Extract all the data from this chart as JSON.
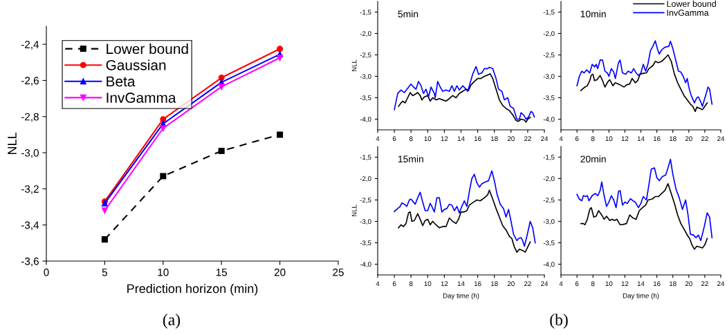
{
  "chart_data": [
    {
      "type": "line",
      "xlabel": "Prediction horizon (min)",
      "ylabel": "NLL",
      "annotations": [
        "(a)"
      ],
      "x": [
        5,
        10,
        15,
        20
      ],
      "xlim": [
        0,
        25
      ],
      "xticks": [
        0,
        5,
        10,
        15,
        20,
        25
      ],
      "ylim": [
        -3.6,
        -2.3
      ],
      "yticks": [
        {
          "value": -3.6,
          "label": "-3,6"
        },
        {
          "value": -3.4,
          "label": "-3,4"
        },
        {
          "value": -3.2,
          "label": "-3,2"
        },
        {
          "value": -3.0,
          "label": "-3,0"
        },
        {
          "value": -2.8,
          "label": "-2,8"
        },
        {
          "value": -2.6,
          "label": "-2,6"
        },
        {
          "value": -2.4,
          "label": "-2,4"
        }
      ],
      "legend": "top left",
      "series": [
        {
          "name": "Lower bound",
          "color": "#000000",
          "marker": "square",
          "line_style": "dashed",
          "values": [
            -3.48,
            -3.13,
            -2.99,
            -2.9
          ]
        },
        {
          "name": "Gaussian",
          "color": "#ff0000",
          "marker": "circle",
          "line_style": "solid",
          "values": [
            -3.27,
            -2.815,
            -2.585,
            -2.425
          ]
        },
        {
          "name": "Beta",
          "color": "#0000ff",
          "marker": "triangle",
          "line_style": "solid",
          "values": [
            -3.28,
            -2.84,
            -2.61,
            -2.455
          ]
        },
        {
          "name": "InvGamma",
          "color": "#ff00ff",
          "marker": "triangle_down",
          "line_style": "solid",
          "values": [
            -3.32,
            -2.865,
            -2.635,
            -2.475
          ]
        }
      ]
    },
    {
      "type": "line",
      "title": "5min",
      "ylabel": "NLL",
      "xlim": [
        4,
        24
      ],
      "xticks": [
        4,
        6,
        8,
        10,
        12,
        14,
        16,
        18,
        20,
        22,
        24
      ],
      "ylim": [
        -4.25,
        -1.25
      ],
      "yticks": [
        {
          "value": -4.0,
          "label": "-4,0"
        },
        {
          "value": -3.5,
          "label": "-3,5"
        },
        {
          "value": -3.0,
          "label": "-3,0"
        },
        {
          "value": -2.5,
          "label": "-2,5"
        },
        {
          "value": -2.0,
          "label": "-2,0"
        },
        {
          "value": -1.5,
          "label": "-1,5"
        }
      ],
      "series": [
        {
          "color": "#000000",
          "x": [
            6.5,
            6.8,
            7.0,
            7.3,
            7.6,
            7.9,
            8.2,
            8.5,
            8.8,
            9.1,
            9.3,
            9.6,
            10.0,
            10.3,
            10.6,
            11.0,
            11.4,
            11.8,
            12.2,
            12.6,
            13.0,
            13.4,
            13.8,
            14.2,
            14.6,
            14.9,
            15.2,
            15.6,
            16.0,
            16.4,
            16.8,
            17.2,
            17.5,
            17.8,
            18.2,
            18.6,
            19.0,
            19.4,
            19.8,
            20.2,
            20.6,
            20.9,
            21.2,
            21.6,
            21.8,
            22.0,
            22.3
          ],
          "values": [
            -3.7,
            -3.62,
            -3.58,
            -3.62,
            -3.5,
            -3.38,
            -3.45,
            -3.42,
            -3.38,
            -3.45,
            -3.55,
            -3.48,
            -3.45,
            -3.58,
            -3.5,
            -3.55,
            -3.52,
            -3.55,
            -3.58,
            -3.52,
            -3.45,
            -3.5,
            -3.4,
            -3.35,
            -3.3,
            -3.33,
            -3.2,
            -3.12,
            -3.05,
            -3.05,
            -3.0,
            -2.97,
            -2.94,
            -3.05,
            -3.3,
            -3.55,
            -3.68,
            -3.75,
            -3.8,
            -3.9,
            -4.03,
            -4.05,
            -4.0,
            -4.02,
            -4.07,
            -4.0,
            -3.96
          ]
        },
        {
          "color": "#0000ff",
          "x": [
            6.0,
            6.4,
            6.8,
            7.2,
            7.6,
            8.0,
            8.3,
            8.6,
            8.9,
            9.2,
            9.5,
            9.8,
            10.1,
            10.4,
            10.8,
            10.9,
            11.2,
            11.5,
            11.8,
            12.2,
            12.6,
            12.9,
            13.2,
            13.5,
            13.8,
            14.2,
            14.5,
            14.8,
            15.1,
            15.4,
            15.8,
            16.1,
            16.5,
            16.8,
            17.2,
            17.4,
            17.8,
            18.2,
            18.5,
            18.9,
            19.2,
            19.6,
            19.9,
            20.3,
            20.7,
            21.0,
            21.2,
            21.5,
            21.8,
            22.1,
            22.4,
            22.6,
            22.8
          ],
          "values": [
            -3.78,
            -3.4,
            -3.32,
            -3.38,
            -3.28,
            -3.18,
            -3.25,
            -3.3,
            -3.12,
            -3.22,
            -3.4,
            -3.3,
            -3.48,
            -3.25,
            -3.4,
            -3.5,
            -3.12,
            -3.25,
            -3.35,
            -3.32,
            -3.35,
            -3.22,
            -3.35,
            -3.22,
            -3.32,
            -3.22,
            -3.28,
            -3.35,
            -3.15,
            -2.95,
            -2.77,
            -2.95,
            -2.92,
            -2.82,
            -2.82,
            -2.79,
            -2.82,
            -3.05,
            -3.3,
            -3.35,
            -3.55,
            -3.5,
            -3.7,
            -3.75,
            -4.0,
            -4.0,
            -3.85,
            -3.9,
            -4.0,
            -3.95,
            -3.82,
            -3.85,
            -3.95
          ]
        }
      ]
    },
    {
      "type": "line",
      "title": "10min",
      "xlim": [
        4,
        24
      ],
      "xticks": [
        4,
        6,
        8,
        10,
        12,
        14,
        16,
        18,
        20,
        22,
        24
      ],
      "ylim": [
        -4.25,
        -1.25
      ],
      "yticks": [
        {
          "value": -4.0,
          "label": "-4,0"
        },
        {
          "value": -3.5,
          "label": "-3,5"
        },
        {
          "value": -3.0,
          "label": "-3,0"
        },
        {
          "value": -2.5,
          "label": "-2,5"
        },
        {
          "value": -2.0,
          "label": "-2,0"
        },
        {
          "value": -1.5,
          "label": "-1,5"
        }
      ],
      "legend": "top right",
      "series": [
        {
          "name": "Lower bound",
          "color": "#000000",
          "x": [
            6.5,
            6.8,
            7.0,
            7.3,
            7.6,
            7.8,
            8.0,
            8.2,
            8.5,
            8.9,
            9.2,
            9.5,
            9.9,
            10.1,
            10.5,
            10.8,
            11.2,
            11.6,
            11.9,
            12.2,
            12.6,
            12.9,
            13.3,
            13.6,
            13.9,
            14.3,
            14.7,
            15.0,
            15.5,
            15.8,
            16.2,
            16.6,
            17.0,
            17.4,
            17.8,
            18.2,
            18.6,
            19.0,
            19.4,
            19.8,
            20.2,
            20.5,
            20.8,
            21.0,
            21.4,
            21.7,
            22.0,
            22.3
          ],
          "values": [
            -3.33,
            -3.28,
            -3.25,
            -3.22,
            -3.1,
            -2.97,
            -2.95,
            -3.1,
            -3.08,
            -2.98,
            -3.1,
            -3.25,
            -3.12,
            -3.08,
            -3.22,
            -3.15,
            -3.18,
            -3.22,
            -3.25,
            -3.2,
            -3.18,
            -3.05,
            -3.15,
            -3.1,
            -2.95,
            -2.93,
            -2.92,
            -2.82,
            -2.75,
            -2.65,
            -2.68,
            -2.65,
            -2.58,
            -2.5,
            -2.65,
            -2.95,
            -3.15,
            -3.3,
            -3.45,
            -3.55,
            -3.65,
            -3.7,
            -3.82,
            -3.72,
            -3.75,
            -3.78,
            -3.7,
            -3.62
          ]
        },
        {
          "name": "InvGamma",
          "color": "#0000ff",
          "x": [
            6.0,
            6.3,
            6.6,
            6.9,
            7.2,
            7.6,
            7.9,
            8.2,
            8.4,
            8.6,
            8.9,
            9.2,
            9.5,
            9.8,
            10.0,
            10.3,
            10.6,
            10.8,
            11.2,
            11.4,
            11.7,
            12.1,
            12.4,
            12.8,
            13.1,
            13.4,
            13.7,
            14.0,
            14.3,
            14.6,
            14.9,
            15.2,
            15.5,
            15.8,
            16.1,
            16.3,
            16.6,
            17.0,
            17.5,
            17.7,
            18.0,
            18.4,
            18.7,
            19.0,
            19.3,
            19.6,
            19.8,
            20.0,
            20.3,
            20.7,
            21.0,
            21.2,
            21.5,
            21.7,
            22.1,
            22.4,
            22.6,
            22.9
          ],
          "values": [
            -3.22,
            -3.0,
            -2.88,
            -2.92,
            -2.85,
            -2.92,
            -2.72,
            -2.78,
            -2.72,
            -2.82,
            -2.62,
            -2.62,
            -2.88,
            -2.92,
            -3.0,
            -2.82,
            -2.9,
            -3.05,
            -2.68,
            -2.62,
            -2.92,
            -2.95,
            -2.88,
            -2.92,
            -2.82,
            -2.92,
            -2.98,
            -2.92,
            -2.72,
            -2.88,
            -2.7,
            -2.4,
            -2.3,
            -2.17,
            -2.38,
            -2.48,
            -2.38,
            -2.32,
            -2.3,
            -2.18,
            -2.35,
            -2.65,
            -2.88,
            -2.9,
            -3.0,
            -3.15,
            -3.05,
            -3.25,
            -3.45,
            -3.62,
            -3.5,
            -3.48,
            -3.6,
            -3.7,
            -3.45,
            -3.25,
            -3.3,
            -3.65
          ]
        }
      ]
    },
    {
      "type": "line",
      "title": "15min",
      "xlabel": "Day time (h)",
      "ylabel": "NLL",
      "annotations": [
        "(b)"
      ],
      "xlim": [
        4,
        24
      ],
      "xticks": [
        4,
        6,
        8,
        10,
        12,
        14,
        16,
        18,
        20,
        22,
        24
      ],
      "ylim": [
        -4.25,
        -1.25
      ],
      "yticks": [
        {
          "value": -4.0,
          "label": "-4,0"
        },
        {
          "value": -3.5,
          "label": "-3,5"
        },
        {
          "value": -3.0,
          "label": "-3,0"
        },
        {
          "value": -2.5,
          "label": "-2,5"
        },
        {
          "value": -2.0,
          "label": "-2,0"
        },
        {
          "value": -1.5,
          "label": "-1,5"
        }
      ],
      "series": [
        {
          "color": "#000000",
          "x": [
            6.5,
            6.8,
            7.1,
            7.4,
            7.7,
            7.9,
            8.1,
            8.4,
            8.8,
            9.1,
            9.4,
            9.7,
            10.0,
            10.3,
            10.6,
            11.0,
            11.4,
            11.8,
            12.2,
            12.6,
            13.0,
            13.4,
            13.7,
            14.0,
            14.4,
            14.7,
            15.0,
            15.5,
            15.9,
            16.3,
            16.8,
            17.2,
            17.4,
            17.8,
            18.2,
            18.6,
            19.0,
            19.4,
            19.8,
            20.1,
            20.4,
            20.7,
            21.0,
            21.4,
            21.7,
            22.0,
            22.3
          ],
          "values": [
            -3.15,
            -3.08,
            -3.12,
            -3.05,
            -2.8,
            -2.78,
            -3.0,
            -2.98,
            -2.82,
            -2.95,
            -3.1,
            -2.98,
            -2.95,
            -3.08,
            -3.0,
            -3.08,
            -3.15,
            -3.12,
            -3.12,
            -2.92,
            -3.0,
            -3.05,
            -2.95,
            -2.78,
            -2.78,
            -2.75,
            -2.62,
            -2.55,
            -2.5,
            -2.52,
            -2.45,
            -2.38,
            -2.27,
            -2.48,
            -2.7,
            -2.9,
            -3.1,
            -3.2,
            -3.35,
            -3.4,
            -3.6,
            -3.72,
            -3.65,
            -3.68,
            -3.72,
            -3.6,
            -3.48
          ]
        },
        {
          "color": "#0000ff",
          "x": [
            6.0,
            6.4,
            6.7,
            6.9,
            7.2,
            7.5,
            7.8,
            8.0,
            8.3,
            8.5,
            8.8,
            9.1,
            9.4,
            9.7,
            10.0,
            10.3,
            10.5,
            10.8,
            11.1,
            11.4,
            11.7,
            12.0,
            12.3,
            12.6,
            12.9,
            13.2,
            13.5,
            13.8,
            14.1,
            14.4,
            14.7,
            15.0,
            15.3,
            15.6,
            15.9,
            16.2,
            16.5,
            16.9,
            17.3,
            17.7,
            18.0,
            18.3,
            18.7,
            19.1,
            19.4,
            19.7,
            20.0,
            20.3,
            20.7,
            20.9,
            21.2,
            21.4,
            21.6,
            21.9,
            22.3,
            22.6,
            22.9
          ],
          "values": [
            -2.77,
            -2.7,
            -2.65,
            -2.57,
            -2.6,
            -2.65,
            -2.5,
            -2.48,
            -2.55,
            -2.6,
            -2.45,
            -2.32,
            -2.55,
            -2.75,
            -2.75,
            -2.58,
            -2.65,
            -2.78,
            -2.45,
            -2.45,
            -2.78,
            -2.72,
            -2.7,
            -2.6,
            -2.62,
            -2.75,
            -2.65,
            -2.8,
            -2.65,
            -2.52,
            -2.65,
            -2.3,
            -2.0,
            -1.9,
            -2.1,
            -2.2,
            -2.12,
            -2.08,
            -2.05,
            -1.82,
            -2.05,
            -2.35,
            -2.6,
            -2.7,
            -2.9,
            -2.72,
            -3.0,
            -3.3,
            -3.45,
            -3.4,
            -3.38,
            -3.45,
            -3.58,
            -3.35,
            -3.0,
            -3.15,
            -3.5
          ]
        }
      ]
    },
    {
      "type": "line",
      "title": "20min",
      "xlabel": "Day time (h)",
      "xlim": [
        4,
        24
      ],
      "xticks": [
        4,
        6,
        8,
        10,
        12,
        14,
        16,
        18,
        20,
        22,
        24
      ],
      "ylim": [
        -4.25,
        -1.25
      ],
      "yticks": [
        {
          "value": -4.0,
          "label": "-4,0"
        },
        {
          "value": -3.5,
          "label": "-3,5"
        },
        {
          "value": -3.0,
          "label": "-3,0"
        },
        {
          "value": -2.5,
          "label": "-2,5"
        },
        {
          "value": -2.0,
          "label": "-2,0"
        },
        {
          "value": -1.5,
          "label": "-1,5"
        }
      ],
      "series": [
        {
          "color": "#000000",
          "x": [
            6.5,
            6.8,
            7.0,
            7.3,
            7.6,
            7.8,
            8.1,
            8.4,
            8.7,
            9.1,
            9.4,
            9.7,
            10.1,
            10.4,
            10.7,
            11.0,
            11.4,
            11.8,
            12.2,
            12.6,
            13.0,
            13.4,
            13.8,
            14.2,
            14.6,
            14.9,
            15.4,
            15.8,
            16.2,
            16.6,
            17.0,
            17.4,
            17.8,
            18.2,
            18.6,
            19.0,
            19.4,
            19.8,
            20.1,
            20.4,
            20.7,
            21.0,
            21.4,
            21.7,
            22.0,
            22.3
          ],
          "values": [
            -3.05,
            -3.05,
            -3.08,
            -2.95,
            -2.72,
            -2.68,
            -2.9,
            -2.88,
            -2.75,
            -2.85,
            -2.95,
            -2.88,
            -2.98,
            -2.95,
            -2.98,
            -2.95,
            -3.08,
            -3.07,
            -3.05,
            -2.85,
            -2.92,
            -2.95,
            -2.75,
            -2.68,
            -2.62,
            -2.5,
            -2.48,
            -2.42,
            -2.42,
            -2.35,
            -2.28,
            -2.12,
            -2.35,
            -2.58,
            -2.85,
            -3.05,
            -3.18,
            -3.32,
            -3.4,
            -3.55,
            -3.65,
            -3.58,
            -3.6,
            -3.62,
            -3.55,
            -3.4
          ]
        },
        {
          "color": "#0000ff",
          "x": [
            6.0,
            6.3,
            6.6,
            6.8,
            7.1,
            7.3,
            7.5,
            7.9,
            8.3,
            8.6,
            8.9,
            9.1,
            9.4,
            9.7,
            10.0,
            10.3,
            10.6,
            10.9,
            11.2,
            11.4,
            11.7,
            12.0,
            12.3,
            12.7,
            13.0,
            13.3,
            13.7,
            14.0,
            14.3,
            14.7,
            15.0,
            15.3,
            15.7,
            16.0,
            16.3,
            16.7,
            17.1,
            17.4,
            17.7,
            18.0,
            18.4,
            18.8,
            19.2,
            19.6,
            19.9,
            20.2,
            20.6,
            20.9,
            21.2,
            21.5,
            21.9,
            22.3,
            22.6,
            22.9
          ],
          "values": [
            -2.37,
            -2.48,
            -2.52,
            -2.4,
            -2.42,
            -2.4,
            -2.52,
            -2.4,
            -2.35,
            -2.4,
            -2.28,
            -2.08,
            -2.4,
            -2.65,
            -2.55,
            -2.4,
            -2.5,
            -2.68,
            -2.3,
            -2.28,
            -2.62,
            -2.55,
            -2.58,
            -2.47,
            -2.52,
            -2.55,
            -2.68,
            -2.58,
            -2.42,
            -2.5,
            -2.15,
            -1.78,
            -1.75,
            -1.98,
            -2.05,
            -1.95,
            -1.92,
            -1.75,
            -1.55,
            -1.9,
            -2.25,
            -2.45,
            -2.72,
            -2.5,
            -2.85,
            -3.3,
            -3.32,
            -3.38,
            -3.32,
            -3.45,
            -3.15,
            -2.8,
            -2.9,
            -3.38
          ]
        }
      ]
    }
  ]
}
